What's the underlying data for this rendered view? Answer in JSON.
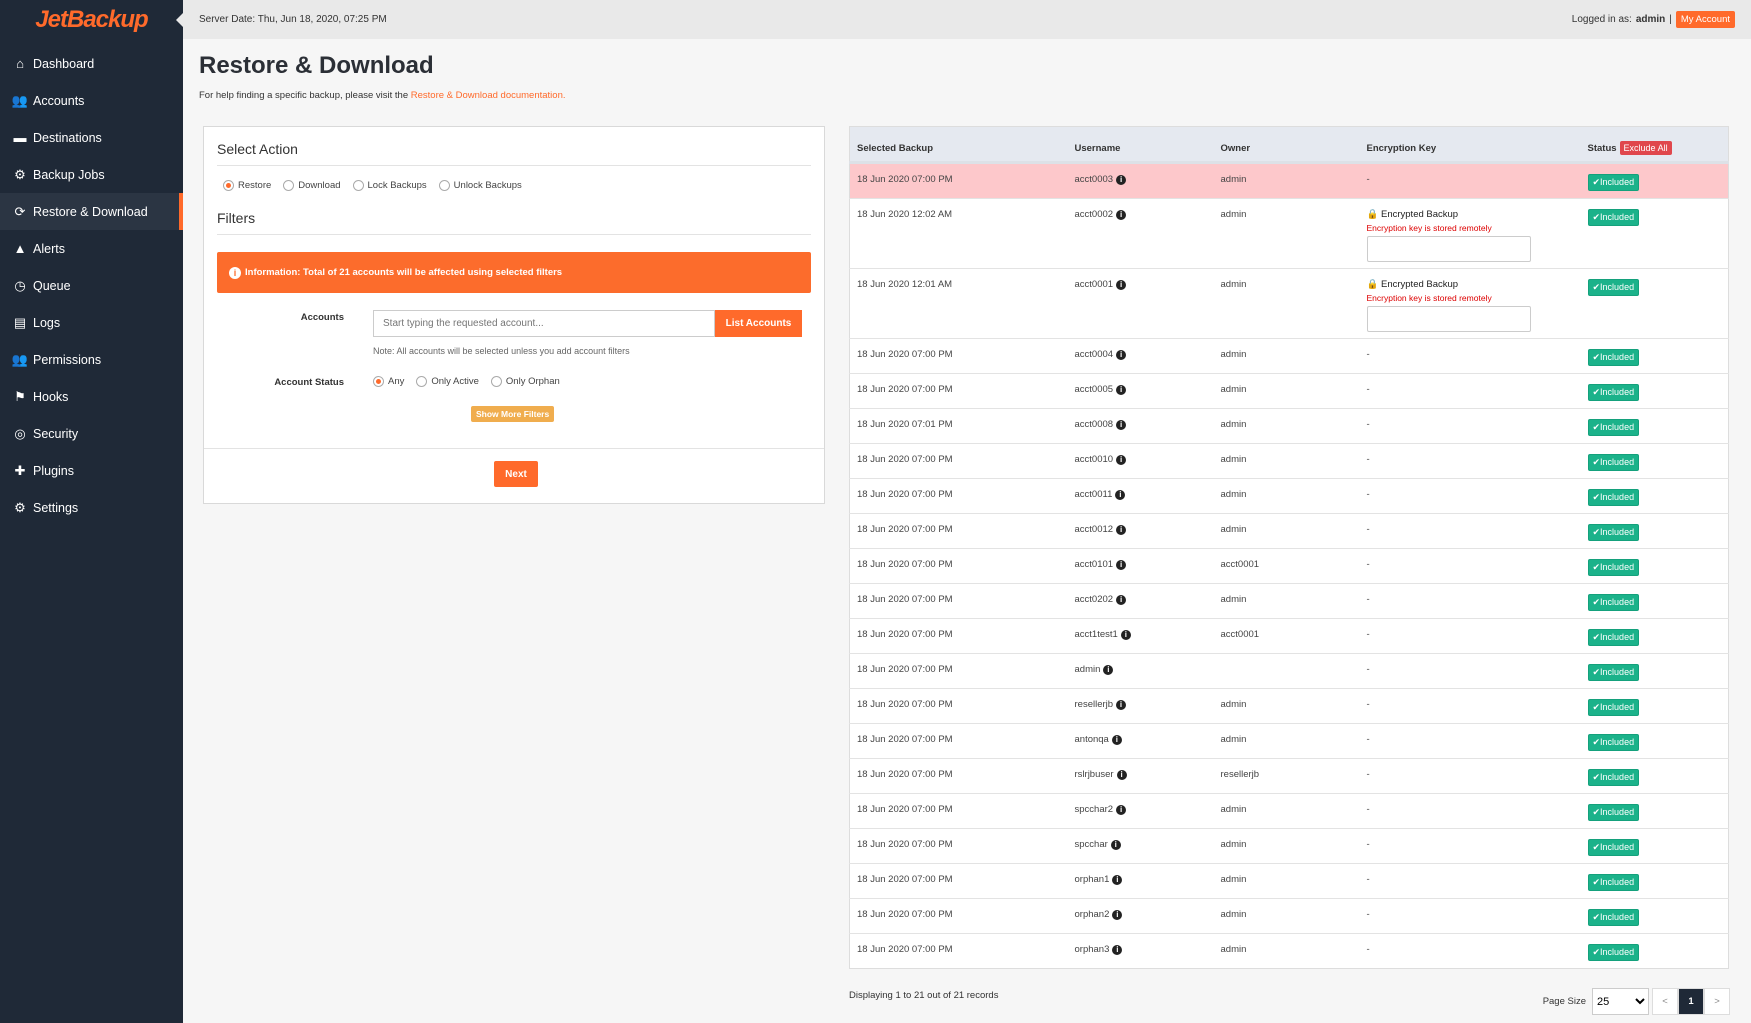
{
  "brand": "JetBackup",
  "colors": {
    "accent": "#ff6a2b",
    "sidebar": "#1f2937",
    "included": "#1bb28a",
    "exclude": "#e0474c",
    "highlight_row": "#fdc8cb"
  },
  "sidebar": {
    "items": [
      {
        "label": "Dashboard",
        "icon": "home-icon"
      },
      {
        "label": "Accounts",
        "icon": "users-icon"
      },
      {
        "label": "Destinations",
        "icon": "folder-icon"
      },
      {
        "label": "Backup Jobs",
        "icon": "cogs-icon"
      },
      {
        "label": "Restore & Download",
        "icon": "refresh-icon",
        "active": true
      },
      {
        "label": "Alerts",
        "icon": "warning-icon"
      },
      {
        "label": "Queue",
        "icon": "clock-icon"
      },
      {
        "label": "Logs",
        "icon": "file-icon"
      },
      {
        "label": "Permissions",
        "icon": "users-cog-icon"
      },
      {
        "label": "Hooks",
        "icon": "flag-icon"
      },
      {
        "label": "Security",
        "icon": "fingerprint-icon"
      },
      {
        "label": "Plugins",
        "icon": "puzzle-icon"
      },
      {
        "label": "Settings",
        "icon": "gear-icon"
      }
    ]
  },
  "topbar": {
    "server_date": "Server Date: Thu, Jun 18, 2020, 07:25 PM",
    "logged_in_prefix": "Logged in as:",
    "user": "admin",
    "sep": "|",
    "my_account": "My Account"
  },
  "page": {
    "title": "Restore & Download",
    "help_text": "For help finding a specific backup, please visit the",
    "help_link": "Restore & Download documentation."
  },
  "form": {
    "select_action": "Select Action",
    "actions": [
      "Restore",
      "Download",
      "Lock Backups",
      "Unlock Backups"
    ],
    "selected_action": "Restore",
    "filters": "Filters",
    "info": "Information: Total of 21 accounts will be affected using selected filters",
    "accounts_label": "Accounts",
    "accounts_placeholder": "Start typing the requested account...",
    "list_accounts": "List Accounts",
    "note": "Note: All accounts will be selected unless you add account filters",
    "status_label": "Account Status",
    "statuses": [
      "Any",
      "Only Active",
      "Only Orphan"
    ],
    "selected_status": "Any",
    "show_more": "Show More Filters",
    "next": "Next"
  },
  "table": {
    "headers": [
      "Selected Backup",
      "Username",
      "Owner",
      "Encryption Key",
      "Status"
    ],
    "exclude_all": "Exclude All",
    "included": "Included",
    "encrypted_label": "Encrypted Backup",
    "encrypted_note": "Encryption key is stored remotely",
    "rows": [
      {
        "date": "18 Jun 2020 07:00 PM",
        "user": "acct0003",
        "owner": "admin",
        "key": "-",
        "hl": true
      },
      {
        "date": "18 Jun 2020 12:02 AM",
        "user": "acct0002",
        "owner": "admin",
        "enc": true
      },
      {
        "date": "18 Jun 2020 12:01 AM",
        "user": "acct0001",
        "owner": "admin",
        "enc": true
      },
      {
        "date": "18 Jun 2020 07:00 PM",
        "user": "acct0004",
        "owner": "admin",
        "key": "-"
      },
      {
        "date": "18 Jun 2020 07:00 PM",
        "user": "acct0005",
        "owner": "admin",
        "key": "-"
      },
      {
        "date": "18 Jun 2020 07:01 PM",
        "user": "acct0008",
        "owner": "admin",
        "key": "-"
      },
      {
        "date": "18 Jun 2020 07:00 PM",
        "user": "acct0010",
        "owner": "admin",
        "key": "-"
      },
      {
        "date": "18 Jun 2020 07:00 PM",
        "user": "acct0011",
        "owner": "admin",
        "key": "-"
      },
      {
        "date": "18 Jun 2020 07:00 PM",
        "user": "acct0012",
        "owner": "admin",
        "key": "-"
      },
      {
        "date": "18 Jun 2020 07:00 PM",
        "user": "acct0101",
        "owner": "acct0001",
        "key": "-"
      },
      {
        "date": "18 Jun 2020 07:00 PM",
        "user": "acct0202",
        "owner": "admin",
        "key": "-"
      },
      {
        "date": "18 Jun 2020 07:00 PM",
        "user": "acct1test1",
        "owner": "acct0001",
        "key": "-"
      },
      {
        "date": "18 Jun 2020 07:00 PM",
        "user": "admin",
        "owner": "",
        "key": "-"
      },
      {
        "date": "18 Jun 2020 07:00 PM",
        "user": "resellerjb",
        "owner": "admin",
        "key": "-"
      },
      {
        "date": "18 Jun 2020 07:00 PM",
        "user": "antonqa",
        "owner": "admin",
        "key": "-"
      },
      {
        "date": "18 Jun 2020 07:00 PM",
        "user": "rslrjbuser",
        "owner": "resellerjb",
        "key": "-"
      },
      {
        "date": "18 Jun 2020 07:00 PM",
        "user": "spcchar2",
        "owner": "admin",
        "key": "-"
      },
      {
        "date": "18 Jun 2020 07:00 PM",
        "user": "spcchar",
        "owner": "admin",
        "key": "-"
      },
      {
        "date": "18 Jun 2020 07:00 PM",
        "user": "orphan1",
        "owner": "admin",
        "key": "-"
      },
      {
        "date": "18 Jun 2020 07:00 PM",
        "user": "orphan2",
        "owner": "admin",
        "key": "-"
      },
      {
        "date": "18 Jun 2020 07:00 PM",
        "user": "orphan3",
        "owner": "admin",
        "key": "-"
      }
    ]
  },
  "pagination": {
    "display": "Displaying 1 to 21 out of 21 records",
    "page_size_label": "Page Size",
    "page_size": "25",
    "prev": "<",
    "current": "1",
    "next": ">"
  }
}
